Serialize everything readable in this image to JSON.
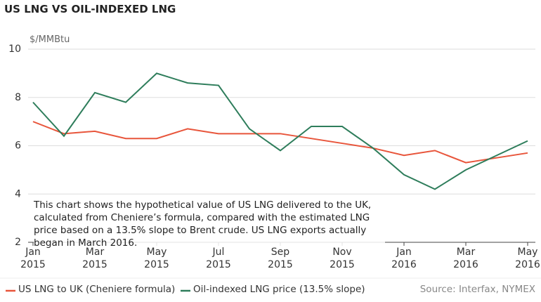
{
  "chart_data": {
    "type": "line",
    "title": "US LNG VS OIL-INDEXED LNG",
    "y_label": "$/MMBtu",
    "annotation": "This chart shows the hypothetical value of US LNG delivered to the UK, calculated from Cheniere’s formula, compared with the estimated LNG price based on a 13.5% slope to Brent crude. US LNG exports actually began in March 2016.",
    "source": "Source: Interfax, NYMEX",
    "x": [
      "2015-01",
      "2015-02",
      "2015-03",
      "2015-04",
      "2015-05",
      "2015-06",
      "2015-07",
      "2015-08",
      "2015-09",
      "2015-10",
      "2015-11",
      "2015-12",
      "2016-01",
      "2016-02",
      "2016-03",
      "2016-04",
      "2016-05"
    ],
    "series": [
      {
        "name": "US LNG to UK (Cheniere formula)",
        "color": "#e8553b",
        "values": [
          7.0,
          6.5,
          6.6,
          6.3,
          6.3,
          6.7,
          6.5,
          6.5,
          6.5,
          6.3,
          6.1,
          5.9,
          5.6,
          5.8,
          5.3,
          5.5,
          5.7
        ]
      },
      {
        "name": "Oil-indexed LNG price (13.5% slope)",
        "color": "#2e7d5b",
        "values": [
          7.8,
          6.4,
          8.2,
          7.8,
          9.0,
          8.6,
          8.5,
          6.7,
          5.8,
          6.8,
          6.8,
          5.9,
          4.8,
          4.2,
          5.0,
          5.6,
          6.2
        ]
      }
    ],
    "xlim": [
      "2015-01",
      "2016-05"
    ],
    "xticks": [
      {
        "value": "2015-01",
        "label": "Jan\n2015"
      },
      {
        "value": "2015-03",
        "label": "Mar\n2015"
      },
      {
        "value": "2015-05",
        "label": "May\n2015"
      },
      {
        "value": "2015-07",
        "label": "Jul\n2015"
      },
      {
        "value": "2015-09",
        "label": "Sep\n2015"
      },
      {
        "value": "2015-11",
        "label": "Nov\n2015"
      },
      {
        "value": "2016-01",
        "label": "Jan\n2016"
      },
      {
        "value": "2016-03",
        "label": "Mar\n2016"
      },
      {
        "value": "2016-05",
        "label": "May\n2016"
      }
    ],
    "ylim": [
      2,
      10
    ],
    "yticks": [
      2,
      4,
      6,
      8,
      10
    ],
    "grid": true
  }
}
